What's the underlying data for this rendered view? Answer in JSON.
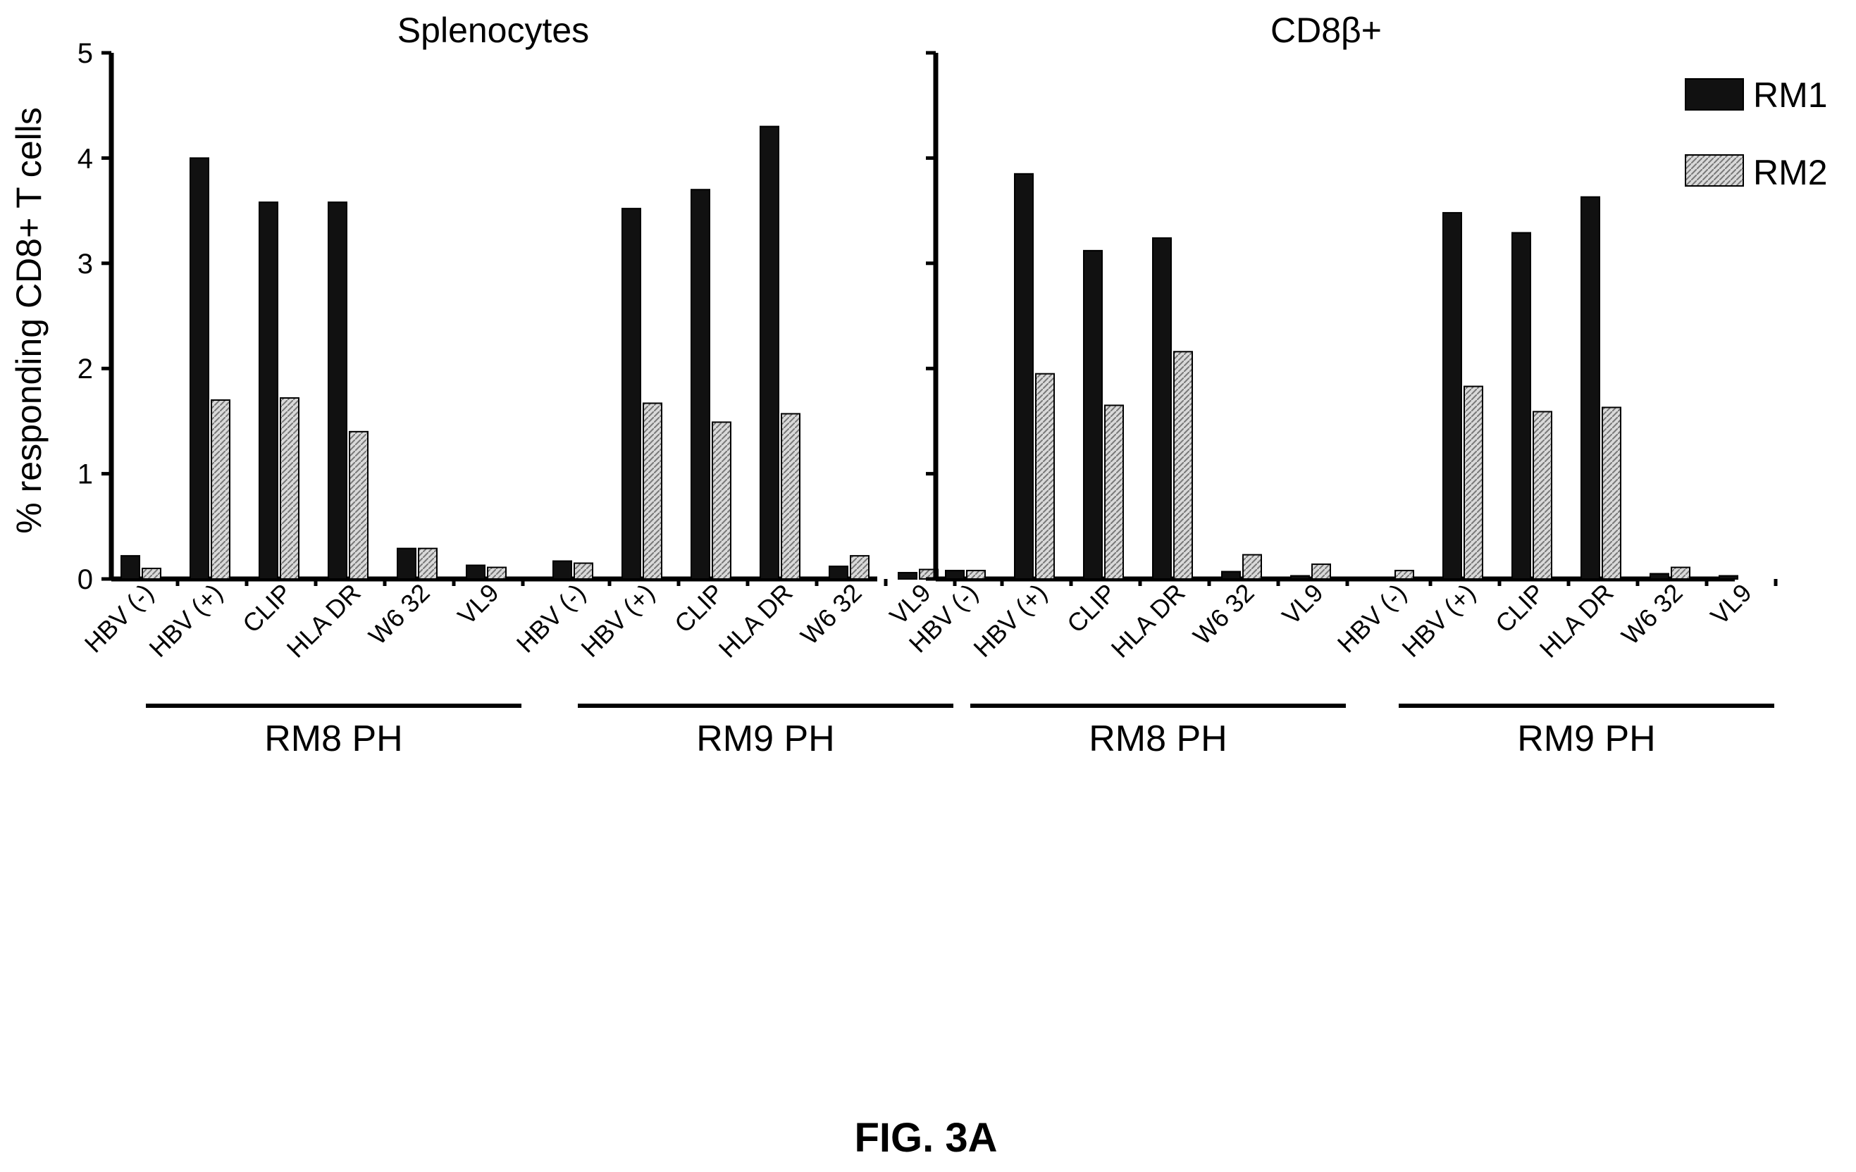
{
  "chart_data": {
    "type": "bar",
    "ylabel": "% responding CD8+ T cells",
    "ylim": [
      0,
      5
    ],
    "yticks": [
      "0",
      "1",
      "2",
      "3",
      "4",
      "5"
    ],
    "categories": [
      "HBV (-)",
      "HBV (+)",
      "CLIP",
      "HLA DR",
      "W6 32",
      "VL9"
    ],
    "legend": {
      "placement": "top-right",
      "entries": [
        {
          "name": "RM1",
          "color": "#111111",
          "pattern": "solid"
        },
        {
          "name": "RM2",
          "color": "#bbbbbb",
          "pattern": "hatched"
        }
      ]
    },
    "panels": [
      {
        "title": "Splenocytes",
        "groups": [
          {
            "label": "RM8 PH",
            "series": [
              {
                "name": "RM1",
                "values": [
                  0.22,
                  4.0,
                  3.58,
                  3.58,
                  0.29,
                  0.13
                ]
              },
              {
                "name": "RM2",
                "values": [
                  0.1,
                  1.7,
                  1.72,
                  1.4,
                  0.29,
                  0.11
                ]
              }
            ]
          },
          {
            "label": "RM9 PH",
            "series": [
              {
                "name": "RM1",
                "values": [
                  0.17,
                  3.52,
                  3.7,
                  4.3,
                  0.12,
                  0.06
                ]
              },
              {
                "name": "RM2",
                "values": [
                  0.15,
                  1.67,
                  1.49,
                  1.57,
                  0.22,
                  0.09
                ]
              }
            ]
          }
        ]
      },
      {
        "title": "CD8β+",
        "groups": [
          {
            "label": "RM8 PH",
            "series": [
              {
                "name": "RM1",
                "values": [
                  0.08,
                  3.85,
                  3.12,
                  3.24,
                  0.07,
                  0.03
                ]
              },
              {
                "name": "RM2",
                "values": [
                  0.08,
                  1.95,
                  1.65,
                  2.16,
                  0.23,
                  0.14
                ]
              }
            ]
          },
          {
            "label": "RM9 PH",
            "series": [
              {
                "name": "RM1",
                "values": [
                  0.0,
                  3.48,
                  3.29,
                  3.63,
                  0.05,
                  0.03
                ]
              },
              {
                "name": "RM2",
                "values": [
                  0.08,
                  1.83,
                  1.59,
                  1.63,
                  0.11,
                  0.0
                ]
              }
            ]
          }
        ]
      }
    ]
  },
  "caption": "FIG. 3A"
}
